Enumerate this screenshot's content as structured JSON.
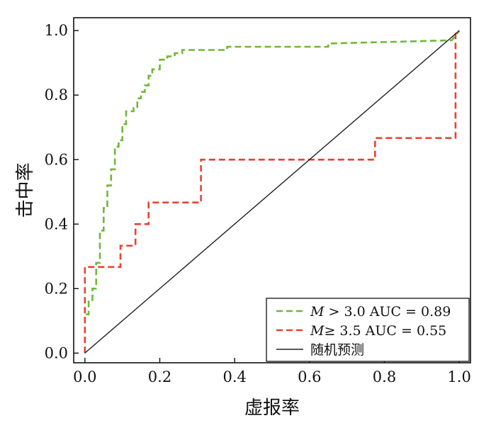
{
  "chart_data": {
    "type": "line",
    "title": "",
    "xlabel": "虚报率",
    "ylabel": "击中率",
    "xlim": [
      -0.03,
      1.03
    ],
    "ylim": [
      -0.03,
      1.04
    ],
    "x_ticks": [
      "0.0",
      "0.2",
      "0.4",
      "0.6",
      "0.8",
      "1.0"
    ],
    "y_ticks": [
      "0.0",
      "0.2",
      "0.4",
      "0.6",
      "0.8",
      "1.0"
    ],
    "grid": false,
    "legend_position": "bottom-right",
    "series": [
      {
        "name": "M > 3.0 AUC = 0.89",
        "name_italic": "M",
        "name_rest": " > 3.0 AUC = 0.89",
        "color": "#6fb73a",
        "style": "dashed",
        "x": [
          0.0,
          0.0,
          0.01,
          0.01,
          0.02,
          0.02,
          0.03,
          0.03,
          0.04,
          0.04,
          0.05,
          0.05,
          0.06,
          0.06,
          0.07,
          0.07,
          0.08,
          0.08,
          0.09,
          0.09,
          0.1,
          0.1,
          0.11,
          0.11,
          0.13,
          0.13,
          0.14,
          0.14,
          0.15,
          0.15,
          0.16,
          0.16,
          0.17,
          0.17,
          0.18,
          0.18,
          0.2,
          0.2,
          0.22,
          0.22,
          0.24,
          0.24,
          0.26,
          0.26,
          0.38,
          0.38,
          0.65,
          0.65,
          0.98,
          1.0
        ],
        "y": [
          0.0,
          0.12,
          0.12,
          0.16,
          0.16,
          0.2,
          0.2,
          0.28,
          0.28,
          0.38,
          0.38,
          0.45,
          0.45,
          0.52,
          0.52,
          0.57,
          0.57,
          0.64,
          0.64,
          0.66,
          0.66,
          0.71,
          0.71,
          0.75,
          0.75,
          0.76,
          0.76,
          0.79,
          0.79,
          0.81,
          0.81,
          0.83,
          0.83,
          0.86,
          0.86,
          0.88,
          0.88,
          0.91,
          0.91,
          0.92,
          0.92,
          0.93,
          0.93,
          0.94,
          0.94,
          0.95,
          0.95,
          0.96,
          0.97,
          1.0
        ]
      },
      {
        "name": "M≥ 3.5 AUC = 0.55",
        "name_italic": "M",
        "name_rest": "≥ 3.5 AUC = 0.55",
        "color": "#e8422f",
        "style": "dashed",
        "x": [
          0.0,
          0.0,
          0.095,
          0.095,
          0.135,
          0.135,
          0.17,
          0.17,
          0.31,
          0.31,
          0.775,
          0.775,
          0.99,
          0.99
        ],
        "y": [
          0.0,
          0.267,
          0.267,
          0.333,
          0.333,
          0.4,
          0.4,
          0.467,
          0.467,
          0.6,
          0.6,
          0.667,
          0.667,
          1.0
        ]
      },
      {
        "name": "随机预测",
        "color": "#222222",
        "style": "solid",
        "x": [
          0.0,
          1.0
        ],
        "y": [
          0.0,
          1.0
        ]
      }
    ]
  }
}
